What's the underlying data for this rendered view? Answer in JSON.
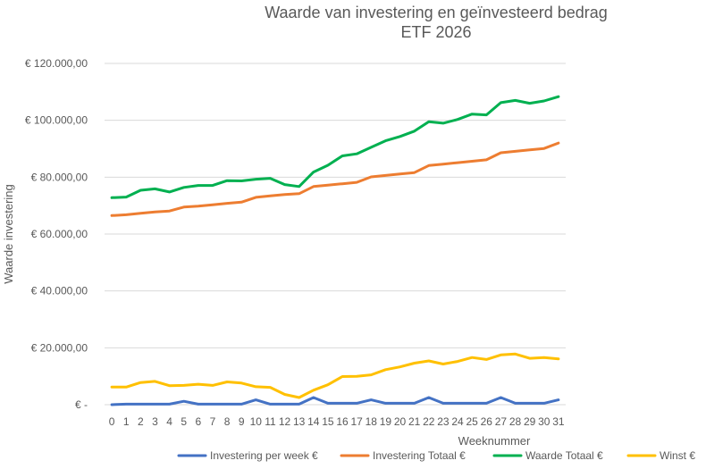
{
  "chart_data": {
    "type": "line",
    "title": "Waarde van investering en geïnvesteerd bedrag",
    "subtitle": "ETF 2026",
    "xlabel": "Weeknummer",
    "ylabel": "Waarde investering",
    "x": [
      0,
      1,
      2,
      3,
      4,
      5,
      6,
      7,
      8,
      9,
      10,
      11,
      12,
      13,
      14,
      15,
      16,
      17,
      18,
      19,
      20,
      21,
      22,
      23,
      24,
      25,
      26,
      27,
      28,
      29,
      30,
      31
    ],
    "ylim": [
      0,
      120000
    ],
    "y_ticks": [
      0,
      20000,
      40000,
      60000,
      80000,
      100000,
      120000
    ],
    "y_tick_labels": [
      "€ -",
      "€ 20.000,00",
      "€ 40.000,00",
      "€ 60.000,00",
      "€ 80.000,00",
      "€ 100.000,00",
      "€ 120.000,00"
    ],
    "grid": true,
    "legend_position": "bottom",
    "series": [
      {
        "name": "Investering per week €",
        "color": "#4472c4",
        "values": [
          0,
          200,
          200,
          200,
          200,
          1200,
          200,
          200,
          200,
          200,
          1700,
          200,
          200,
          200,
          2500,
          500,
          500,
          500,
          1700,
          500,
          500,
          500,
          2500,
          500,
          500,
          500,
          500,
          2500,
          500,
          500,
          500,
          1700
        ]
      },
      {
        "name": "Investering Totaal €",
        "color": "#ed7d31",
        "values": [
          66500,
          66800,
          67300,
          67800,
          68100,
          69500,
          69800,
          70300,
          70800,
          71200,
          72900,
          73400,
          73900,
          74200,
          76700,
          77200,
          77700,
          78200,
          80100,
          80600,
          81100,
          81600,
          84100,
          84600,
          85100,
          85600,
          86100,
          88600,
          89100,
          89600,
          90100,
          92000
        ]
      },
      {
        "name": "Waarde Totaal €",
        "color": "#00b050",
        "values": [
          72800,
          73000,
          75400,
          75900,
          74800,
          76400,
          77100,
          77100,
          78800,
          78700,
          79300,
          79600,
          77400,
          76700,
          81800,
          84200,
          87500,
          88200,
          90500,
          92800,
          94300,
          96200,
          99500,
          99000,
          100300,
          102200,
          101900,
          106200,
          107000,
          106000,
          106800,
          108300
        ]
      },
      {
        "name": "Winst €",
        "color": "#ffc000",
        "values": [
          6200,
          6200,
          7800,
          8200,
          6700,
          6800,
          7200,
          6800,
          8000,
          7600,
          6300,
          6100,
          3600,
          2500,
          5100,
          7000,
          9900,
          10000,
          10500,
          12300,
          13300,
          14600,
          15400,
          14300,
          15200,
          16600,
          15900,
          17500,
          17800,
          16300,
          16600,
          16100
        ]
      }
    ]
  }
}
